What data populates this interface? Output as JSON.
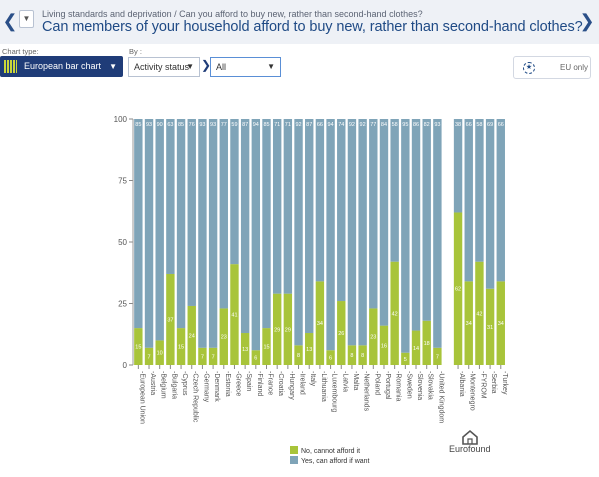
{
  "header": {
    "breadcrumb": "Living standards and deprivation / Can you afford to buy new, rather than second-hand clothes?",
    "title": "Can members of your household afford to buy new, rather than second-hand clothes?",
    "prev_icon": "chevron-left-icon",
    "next_icon": "chevron-right-icon"
  },
  "controls": {
    "chart_type_label": "Chart type:",
    "chart_type_value": "European bar chart",
    "by_label": "By :",
    "by_value": "Activity status",
    "group_value": "All",
    "eu_only_label": "EU only"
  },
  "logo": {
    "text": "Eurofound"
  },
  "colors": {
    "cannot_afford": "#a8c43a",
    "can_afford": "#7fa4b8",
    "value_label": "#ffffff",
    "axis_text": "#555555"
  },
  "chart_data": {
    "type": "bar",
    "stacked": true,
    "categories": [
      "European Union",
      "Austria",
      "Belgium",
      "Bulgaria",
      "Cyprus",
      "Czech Republic",
      "Germany",
      "Denmark",
      "Estonia",
      "Greece",
      "Spain",
      "Finland",
      "France",
      "Croatia",
      "Hungary",
      "Ireland",
      "Italy",
      "Lithuania",
      "Luxembourg",
      "Latvia",
      "Malta",
      "Netherlands",
      "Poland",
      "Portugal",
      "Romania",
      "Sweden",
      "Slovenia",
      "Slovakia",
      "United Kingdom",
      "Albania",
      "Montenegro",
      "FYROM",
      "Serbia",
      "Turkey"
    ],
    "group_break_after": "United Kingdom",
    "series": [
      {
        "name": "No, cannot afford it",
        "values": [
          15,
          7,
          10,
          37,
          15,
          24,
          7,
          7,
          23,
          41,
          13,
          6,
          15,
          29,
          29,
          8,
          13,
          34,
          6,
          26,
          8,
          8,
          23,
          16,
          42,
          5,
          14,
          18,
          7,
          62,
          34,
          42,
          31,
          34
        ]
      },
      {
        "name": "Yes, can afford if want",
        "values": [
          85,
          93,
          90,
          63,
          85,
          76,
          93,
          93,
          77,
          59,
          87,
          94,
          85,
          71,
          71,
          92,
          87,
          66,
          94,
          74,
          92,
          92,
          77,
          84,
          58,
          95,
          86,
          82,
          93,
          38,
          66,
          58,
          69,
          66
        ]
      }
    ],
    "ylim": [
      0,
      100
    ],
    "yticks": [
      0,
      25,
      50,
      75,
      100
    ],
    "legend_position": "bottom-center",
    "grid": false
  }
}
